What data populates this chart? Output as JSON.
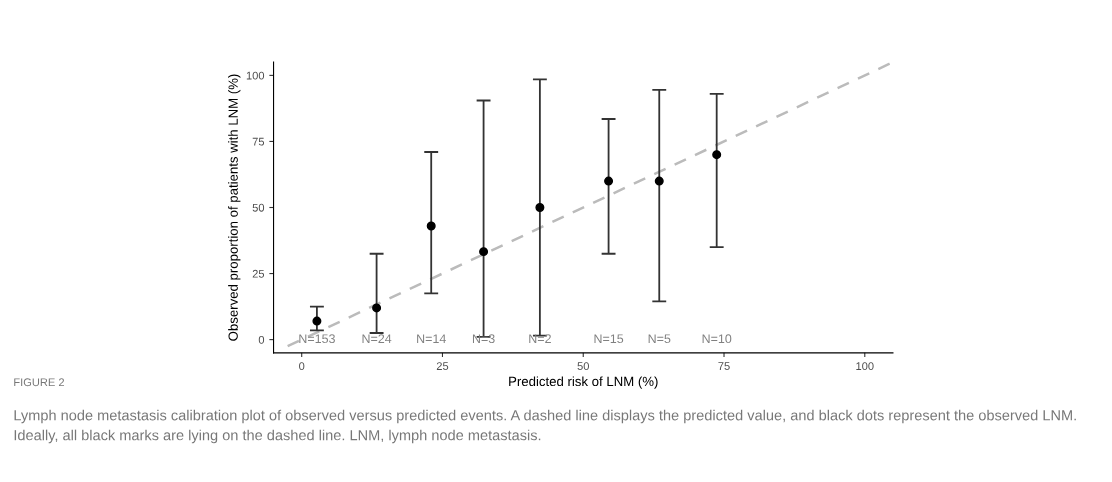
{
  "chart_data": {
    "type": "scatter",
    "xlabel": "Predicted risk of LNM (%)",
    "ylabel": "Observed proportion of patients with LNM (%)",
    "xlim": [
      -5,
      105
    ],
    "ylim": [
      -5,
      105
    ],
    "xticks": [
      0,
      25,
      50,
      75,
      100
    ],
    "yticks": [
      0,
      25,
      50,
      75,
      100
    ],
    "grid": false,
    "series": [
      {
        "type": "line",
        "color": "#bbbbbb",
        "line_style": "dashed",
        "marker": "none",
        "x": [
          -2.5,
          105
        ],
        "values": [
          -2.5,
          105
        ]
      },
      {
        "color": "#000000",
        "marker": "circle",
        "x": [
          2.7,
          13.3,
          23.0,
          32.3,
          42.3,
          54.5,
          63.5,
          73.7
        ],
        "values": [
          7,
          12,
          43,
          33.3,
          50,
          60,
          60,
          70
        ],
        "errors": [
          [
            3.5,
            12.5
          ],
          [
            2.5,
            32.5
          ],
          [
            17.5,
            71
          ],
          [
            1,
            90.5
          ],
          [
            1.5,
            98.5
          ],
          [
            32.5,
            83.5
          ],
          [
            14.5,
            94.5
          ],
          [
            35,
            93
          ]
        ]
      }
    ],
    "annotations": [
      "N=153",
      "N=24",
      "N=14",
      "N=3",
      "N=2",
      "N=15",
      "N=5",
      "N=10",
      "FIGURE 2",
      "Lymph node metastasis calibration plot of observed versus predicted events. A dashed line displays the predicted value, and black dots represent the observed LNM. Ideally, all black marks are lying on the dashed line. LNM, lymph node metastasis."
    ]
  }
}
